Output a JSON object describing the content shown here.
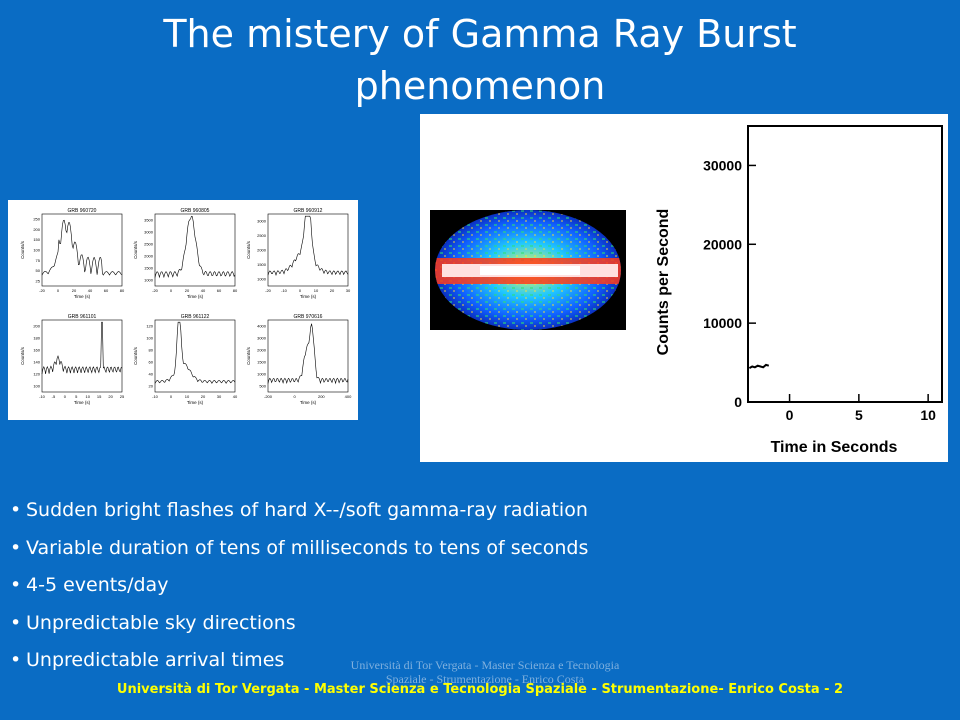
{
  "slide": {
    "title": "The mistery of  Gamma Ray Burst phenomenon",
    "bullets": [
      "Sudden bright flashes of hard X--/soft gamma-ray radiation",
      "Variable duration of tens of milliseconds to tens of seconds",
      "4-5 events/day",
      "Unpredictable sky directions",
      "Unpredictable arrival times"
    ],
    "footer_ghost": "Università di Tor Vergata - Master Scienza e Tecnologia Spaziale - Strumentazione - Enrico Costa",
    "footer": "Università di Tor Vergata - Master Scienza e Tecnologia Spaziale - Strumentazione- Enrico Costa - 2"
  },
  "grid_panels": [
    {
      "label": "GRB 960720",
      "xticks": [
        "-20",
        "0",
        "20",
        "40",
        "60",
        "80"
      ],
      "yticks": [
        "25",
        "50",
        "75",
        "100",
        "150",
        "200",
        "250"
      ]
    },
    {
      "label": "GRB 960805",
      "xticks": [
        "-20",
        "0",
        "20",
        "40",
        "60",
        "80"
      ],
      "yticks": [
        "1000",
        "1500",
        "2000",
        "2500",
        "3000",
        "3500"
      ]
    },
    {
      "label": "GRB 960912",
      "xticks": [
        "-20",
        "-10",
        "0",
        "10",
        "20",
        "30"
      ],
      "yticks": [
        "1000",
        "1500",
        "2000",
        "2500",
        "3000"
      ]
    },
    {
      "label": "GRB 961101",
      "xticks": [
        "-10",
        "-5",
        "0",
        "5",
        "10",
        "15",
        "20",
        "25"
      ],
      "yticks": [
        "100",
        "120",
        "140",
        "160",
        "180",
        "200"
      ]
    },
    {
      "label": "GRB 961122",
      "xticks": [
        "-10",
        "0",
        "10",
        "20",
        "30",
        "40"
      ],
      "yticks": [
        "20",
        "40",
        "60",
        "80",
        "100",
        "120"
      ]
    },
    {
      "label": "GRB 970616",
      "xticks": [
        "-200",
        "0",
        "200",
        "400"
      ],
      "yticks": [
        "500",
        "1000",
        "1500",
        "2000",
        "3000",
        "4000"
      ]
    }
  ],
  "grid_axis": {
    "xlabel": "Time (s)",
    "ylabel": "Counts/s"
  },
  "chart_data": {
    "type": "line",
    "xlabel": "Time in Seconds",
    "ylabel": "Counts per Second",
    "xlim": [
      -3,
      11
    ],
    "ylim": [
      0,
      35000
    ],
    "xticks": [
      "0",
      "5",
      "10"
    ],
    "yticks": [
      "0",
      "10000",
      "20000",
      "30000"
    ],
    "series": [
      {
        "x": [
          -2.9,
          -2.7,
          -2.5,
          -2.3,
          -2.1,
          -1.9,
          -1.7,
          -1.5
        ],
        "y": [
          4300,
          4500,
          4400,
          4600,
          4500,
          4400,
          4700,
          4600
        ]
      }
    ]
  }
}
